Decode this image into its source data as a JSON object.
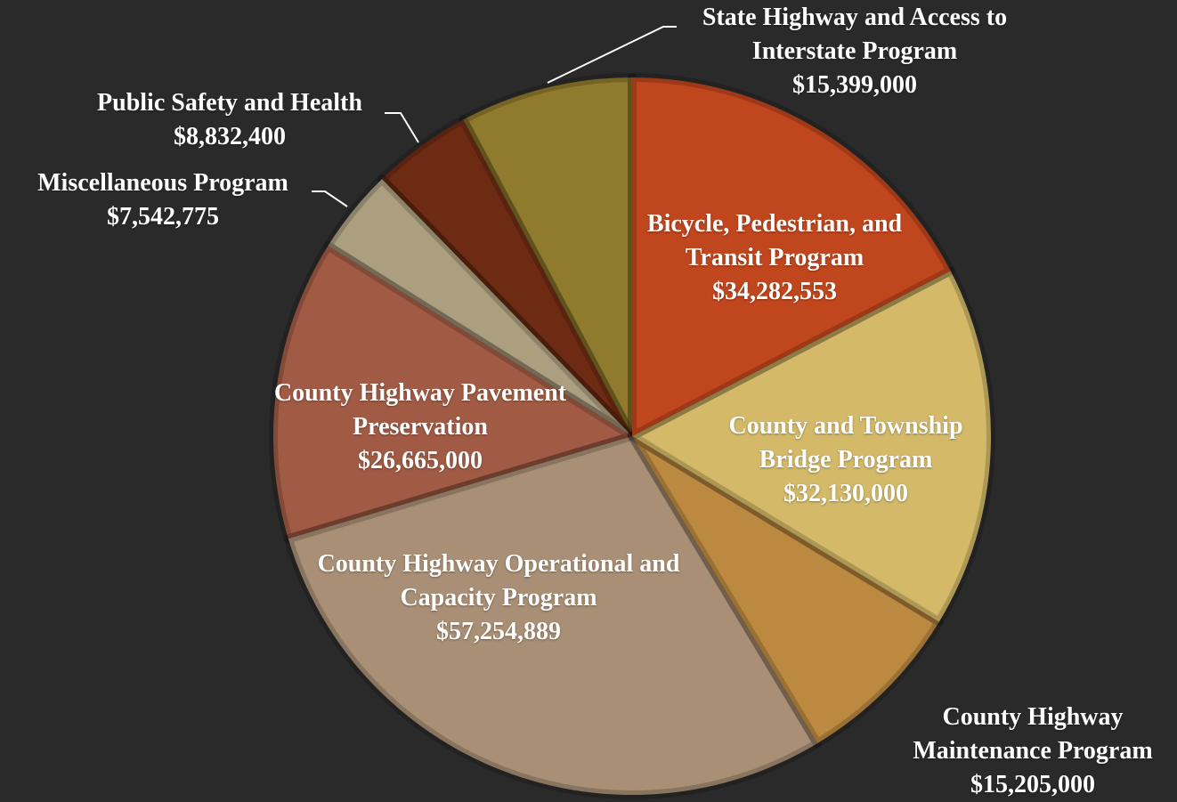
{
  "chart_data": {
    "type": "pie",
    "categories": [
      "Bicycle, Pedestrian, and Transit Program",
      "County and Township Bridge Program",
      "County Highway Maintenance Program",
      "County Highway Operational and Capacity Program",
      "County Highway Pavement Preservation",
      "Miscellaneous Program",
      "Public Safety and Health",
      "State Highway and Access to Interstate Program"
    ],
    "values": [
      34282553,
      32130000,
      15205000,
      57254889,
      26665000,
      7542775,
      8832400,
      15399000
    ],
    "value_labels": [
      "$34,282,553",
      "$32,130,000",
      "$15,205,000",
      "$57,254,889",
      "$26,665,000",
      "$7,542,775",
      "$8,832,400",
      "$15,399,000"
    ],
    "colors": [
      "#c0461d",
      "#d3b968",
      "#bc8941",
      "#a88f75",
      "#a15b45",
      "#ab9f80",
      "#6d2b13",
      "#8f7a2d"
    ]
  }
}
